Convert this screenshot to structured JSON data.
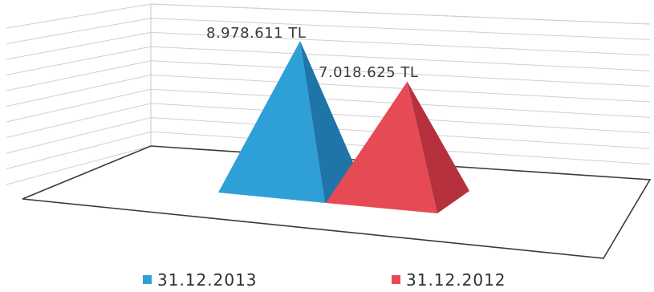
{
  "chart_data": {
    "type": "bar",
    "shape": "pyramid-3d",
    "categories": [
      "31.12.2013",
      "31.12.2012"
    ],
    "values": [
      8978611,
      7018625
    ],
    "data_labels": [
      "8.978.611 TL",
      "7.018.625 TL"
    ],
    "unit": "TL",
    "ylim": [
      0,
      10000000
    ],
    "grid": true,
    "legend_position": "bottom",
    "series": [
      {
        "name": "31.12.2013",
        "value": 8978611,
        "label": "8.978.611 TL",
        "color": "#2f9fd8",
        "color_shade": "#1f74a8"
      },
      {
        "name": "31.12.2012",
        "value": 7018625,
        "label": "7.018.625 TL",
        "color": "#e64a55",
        "color_shade": "#b4313d"
      }
    ]
  }
}
